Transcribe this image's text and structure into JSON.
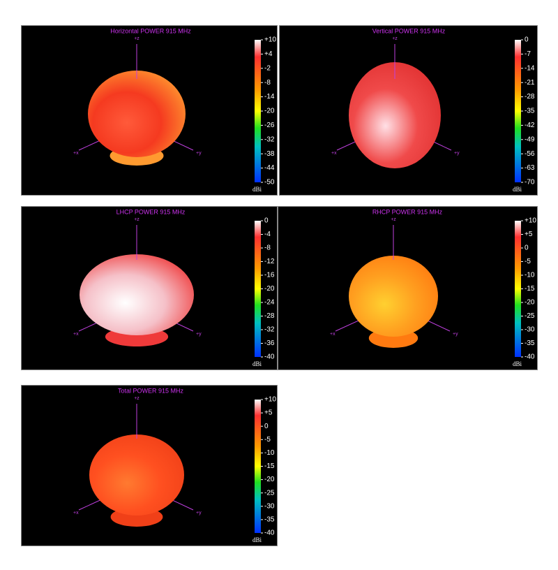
{
  "panels": [
    {
      "title": "Horizontal POWER 915  MHz",
      "axes": {
        "z": "+z",
        "x": "+x",
        "y": "+y"
      },
      "scale_labels": [
        "+10",
        "+4",
        "-2",
        "-8",
        "-14",
        "-20",
        "-26",
        "-32",
        "-38",
        "-44",
        "-50"
      ],
      "unit": "dBi"
    },
    {
      "title": "Vertical POWER 915  MHz",
      "axes": {
        "z": "+z",
        "x": "+x",
        "y": "+y"
      },
      "scale_labels": [
        "0",
        "-7",
        "-14",
        "-21",
        "-28",
        "-35",
        "-42",
        "-49",
        "-56",
        "-63",
        "-70"
      ],
      "unit": "dBi"
    },
    {
      "title": "LHCP POWER 915  MHz",
      "axes": {
        "z": "+z",
        "x": "+x",
        "y": "+y"
      },
      "scale_labels": [
        "0",
        "-4",
        "-8",
        "-12",
        "-16",
        "-20",
        "-24",
        "-28",
        "-32",
        "-36",
        "-40"
      ],
      "unit": "dBi"
    },
    {
      "title": "RHCP POWER 915  MHz",
      "axes": {
        "z": "+z",
        "x": "+x",
        "y": "+y"
      },
      "scale_labels": [
        "+10",
        "+5",
        "0",
        "-5",
        "-10",
        "-15",
        "-20",
        "-25",
        "-30",
        "-35",
        "-40"
      ],
      "unit": "dBi"
    },
    {
      "title": "Total POWER 915  MHz",
      "axes": {
        "z": "+z",
        "x": "+x",
        "y": "+y"
      },
      "scale_labels": [
        "+10",
        "+5",
        "0",
        "-5",
        "-10",
        "-15",
        "-20",
        "-25",
        "-30",
        "-35",
        "-40"
      ],
      "unit": "dBi"
    }
  ]
}
